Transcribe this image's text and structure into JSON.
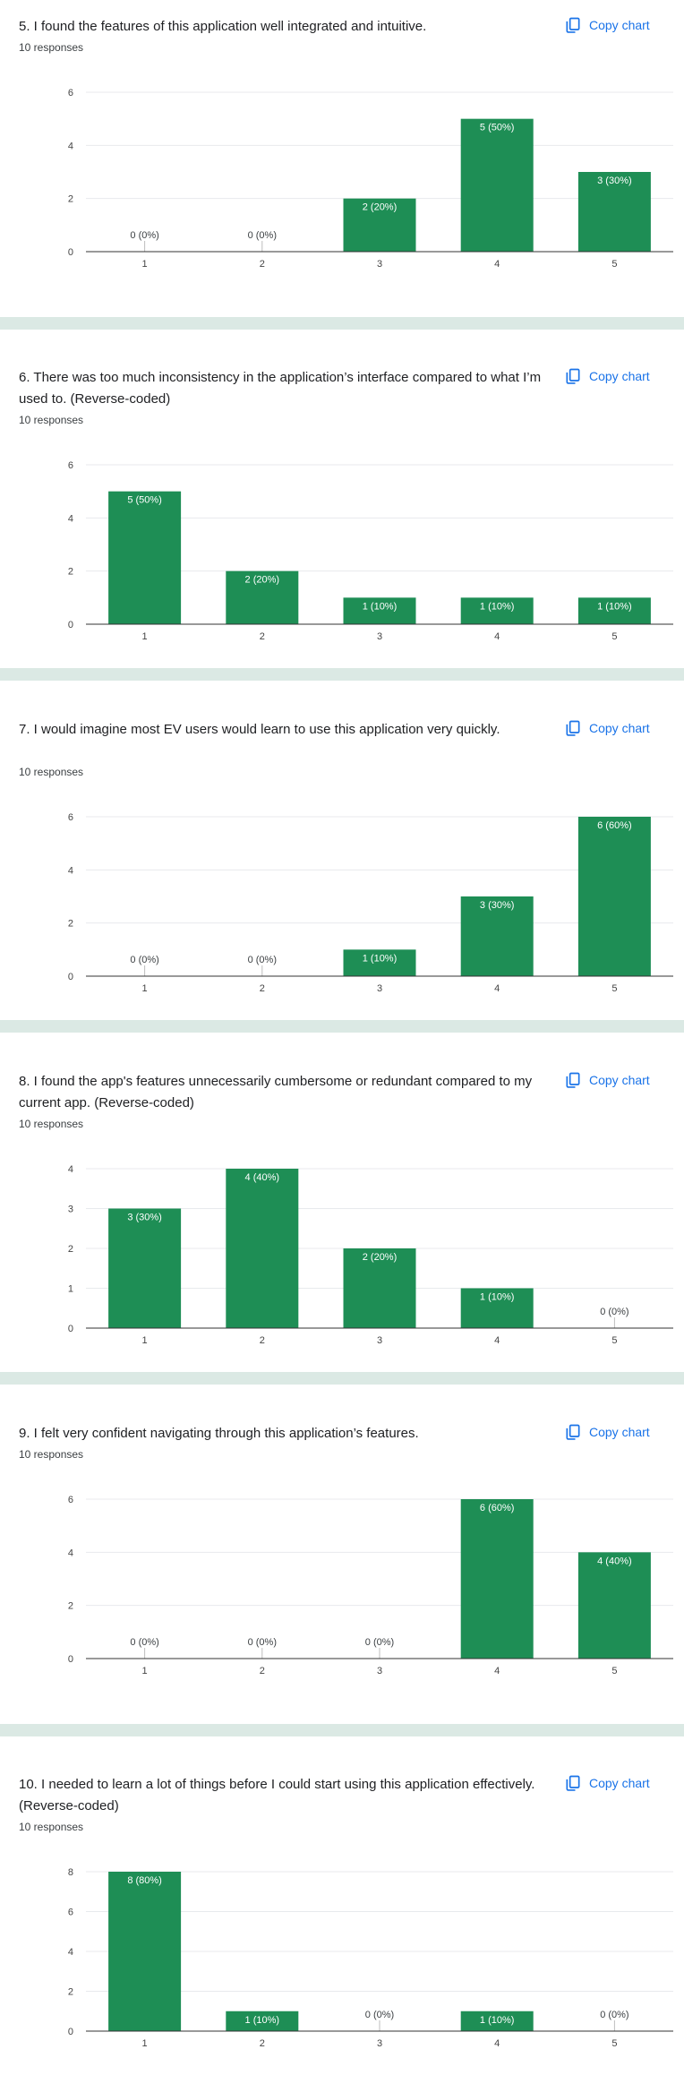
{
  "ui": {
    "copy_label": "Copy chart",
    "bar_color": "#1e8e55",
    "accent_color": "#1a73e8",
    "separator_color": "#dbe9e4",
    "copy_icon": "copy-icon"
  },
  "questions": [
    {
      "title": "5. I found the features of this application well integrated and intuitive.",
      "responses": "10 responses"
    },
    {
      "title": "6. There was too much inconsistency in the application’s interface compared to what I’m used to. (Reverse-coded)",
      "responses": "10 responses"
    },
    {
      "title": "7. I would imagine most EV users would learn to use this application very quickly.",
      "responses": "10 responses"
    },
    {
      "title": "8. I found the app's features unnecessarily cumbersome or redundant compared to my current app. (Reverse-coded)",
      "responses": "10 responses"
    },
    {
      "title": "9. I felt very confident navigating through this application’s features.",
      "responses": "10 responses"
    },
    {
      "title": "10. I needed to learn a lot of things before I could start using this application effectively. (Reverse-coded)",
      "responses": "10 responses"
    }
  ],
  "chart_data": [
    {
      "type": "bar",
      "categories": [
        "1",
        "2",
        "3",
        "4",
        "5"
      ],
      "values": [
        0,
        0,
        2,
        5,
        3
      ],
      "labels": [
        "0 (0%)",
        "0 (0%)",
        "2 (20%)",
        "5 (50%)",
        "3 (30%)"
      ],
      "ylim": [
        0,
        6
      ],
      "yticks": [
        0,
        2,
        4,
        6
      ],
      "grid": true
    },
    {
      "type": "bar",
      "categories": [
        "1",
        "2",
        "3",
        "4",
        "5"
      ],
      "values": [
        5,
        2,
        1,
        1,
        1
      ],
      "labels": [
        "5 (50%)",
        "2 (20%)",
        "1 (10%)",
        "1 (10%)",
        "1 (10%)"
      ],
      "ylim": [
        0,
        6
      ],
      "yticks": [
        0,
        2,
        4,
        6
      ],
      "grid": true
    },
    {
      "type": "bar",
      "categories": [
        "1",
        "2",
        "3",
        "4",
        "5"
      ],
      "values": [
        0,
        0,
        1,
        3,
        6
      ],
      "labels": [
        "0 (0%)",
        "0 (0%)",
        "1 (10%)",
        "3 (30%)",
        "6 (60%)"
      ],
      "ylim": [
        0,
        6
      ],
      "yticks": [
        0,
        2,
        4,
        6
      ],
      "grid": true
    },
    {
      "type": "bar",
      "categories": [
        "1",
        "2",
        "3",
        "4",
        "5"
      ],
      "values": [
        3,
        4,
        2,
        1,
        0
      ],
      "labels": [
        "3 (30%)",
        "4 (40%)",
        "2 (20%)",
        "1 (10%)",
        "0 (0%)"
      ],
      "ylim": [
        0,
        4
      ],
      "yticks": [
        0,
        1,
        2,
        3,
        4
      ],
      "grid": true
    },
    {
      "type": "bar",
      "categories": [
        "1",
        "2",
        "3",
        "4",
        "5"
      ],
      "values": [
        0,
        0,
        0,
        6,
        4
      ],
      "labels": [
        "0 (0%)",
        "0 (0%)",
        "0 (0%)",
        "6 (60%)",
        "4 (40%)"
      ],
      "ylim": [
        0,
        6
      ],
      "yticks": [
        0,
        2,
        4,
        6
      ],
      "grid": true
    },
    {
      "type": "bar",
      "categories": [
        "1",
        "2",
        "3",
        "4",
        "5"
      ],
      "values": [
        8,
        1,
        0,
        1,
        0
      ],
      "labels": [
        "8 (80%)",
        "1 (10%)",
        "0 (0%)",
        "1 (10%)",
        "0 (0%)"
      ],
      "ylim": [
        0,
        8
      ],
      "yticks": [
        0,
        2,
        4,
        6,
        8
      ],
      "grid": true
    }
  ]
}
